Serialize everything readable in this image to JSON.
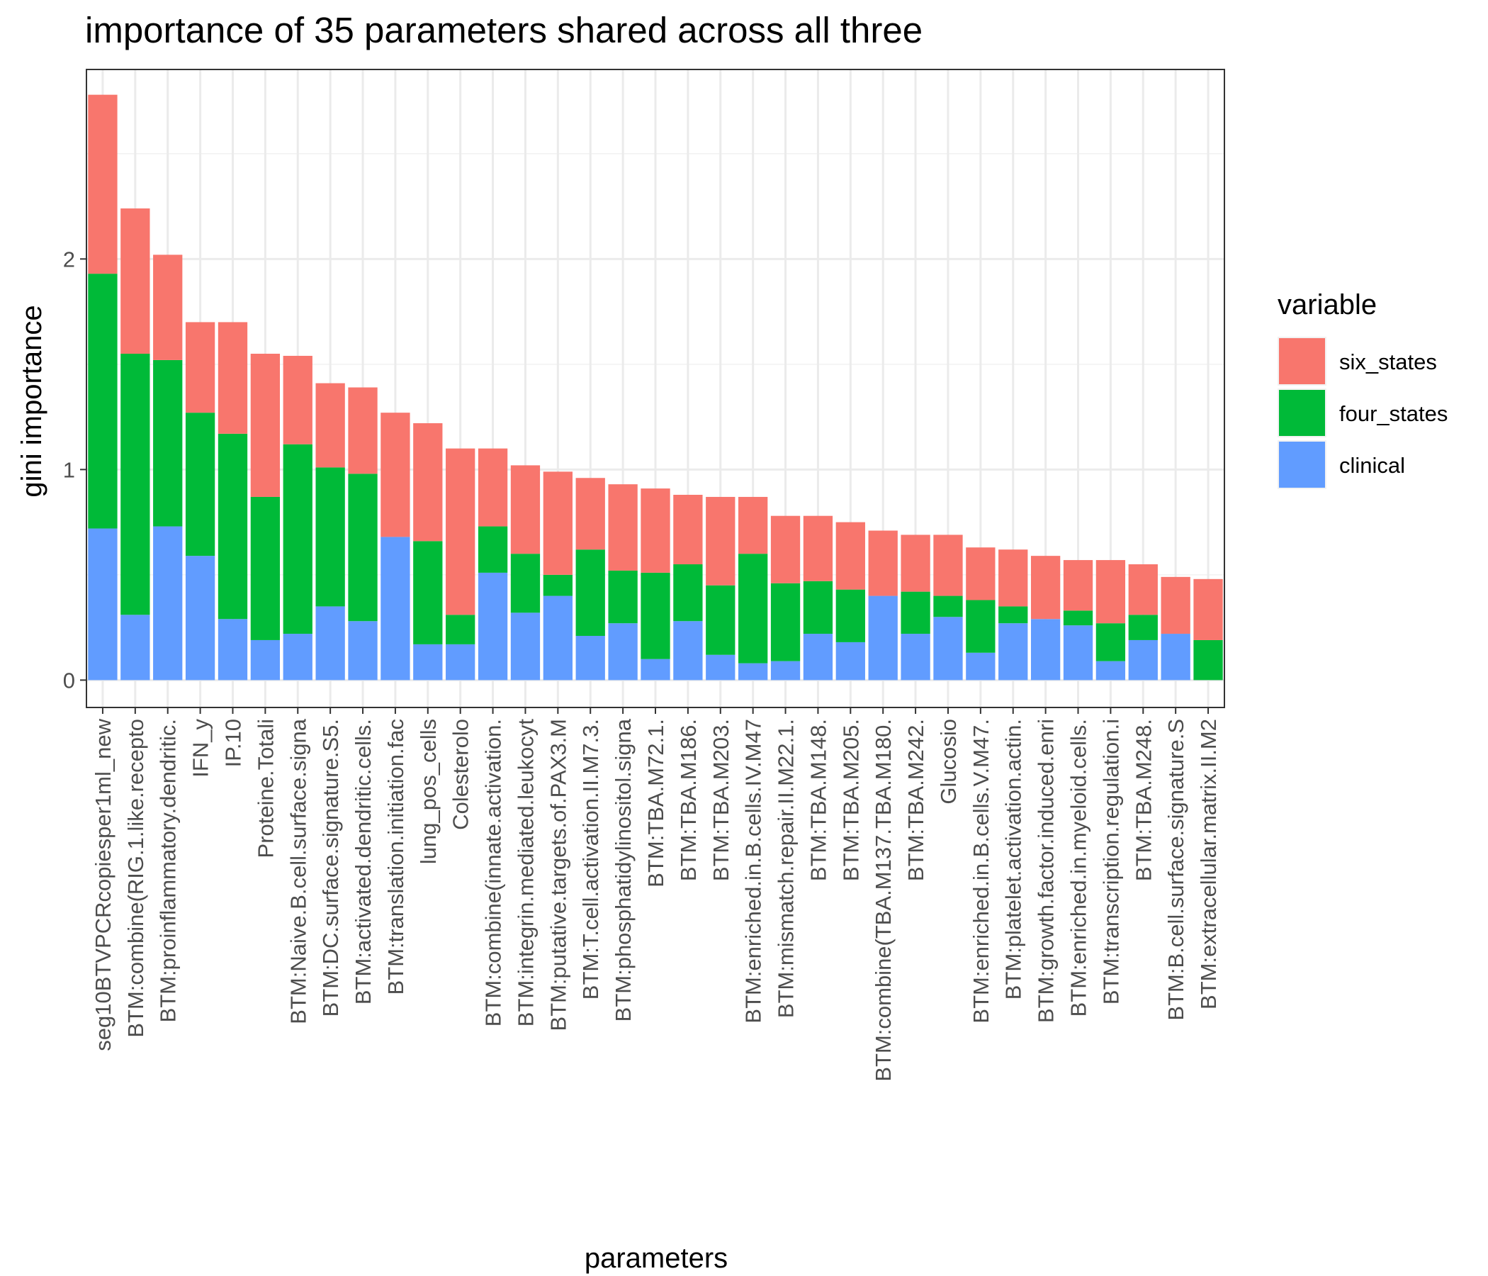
{
  "chart_data": {
    "type": "bar",
    "stacked": true,
    "title": "importance of 35 parameters shared across all three",
    "xlabel": "parameters",
    "ylabel": "gini importance",
    "ylim": [
      -0.13,
      2.9
    ],
    "yticks": [
      0,
      1,
      2
    ],
    "grid": true,
    "legend": {
      "title": "variable",
      "position": "right",
      "entries": [
        "six_states",
        "four_states",
        "clinical"
      ]
    },
    "colors": {
      "six_states": "#F8766D",
      "four_states": "#00BA38",
      "clinical": "#619CFF"
    },
    "categories": [
      "seg10BTVPCRcopiesper1ml_new",
      "BTM:combine(RIG.1.like.recepto",
      "BTM:proinflammatory.dendritic.",
      "IFN_y",
      "IP.10",
      "Proteine.Totali",
      "BTM:Naive.B.cell.surface.signa",
      "BTM:DC.surface.signature.S5.",
      "BTM:activated.dendritic.cells.",
      "BTM:translation.initiation.fac",
      "lung_pos_cells",
      "Colesterolo",
      "BTM:combine(innate.activation.",
      "BTM:integrin.mediated.leukocyt",
      "BTM:putative.targets.of.PAX3.M",
      "BTM:T.cell.activation.II.M7.3.",
      "BTM:phosphatidylinositol.signa",
      "BTM:TBA.M72.1.",
      "BTM:TBA.M186.",
      "BTM:TBA.M203.",
      "BTM:enriched.in.B.cells.IV.M47",
      "BTM:mismatch.repair.II.M22.1.",
      "BTM:TBA.M148.",
      "BTM:TBA.M205.",
      "BTM:combine(TBA.M137.TBA.M180.",
      "BTM:TBA.M242.",
      "Glucosio",
      "BTM:enriched.in.B.cells.V.M47.",
      "BTM:platelet.activation.actin.",
      "BTM:growth.factor.induced.enri",
      "BTM:enriched.in.myeloid.cells.",
      "BTM:transcription.regulation.i",
      "BTM:TBA.M248.",
      "BTM:B.cell.surface.signature.S",
      "BTM:extracellular.matrix.II.M2"
    ],
    "series": [
      {
        "name": "clinical",
        "values": [
          0.72,
          0.31,
          0.73,
          0.59,
          0.29,
          0.19,
          0.22,
          0.35,
          0.28,
          0.68,
          0.17,
          0.17,
          0.51,
          0.32,
          0.4,
          0.21,
          0.27,
          0.1,
          0.28,
          0.12,
          0.08,
          0.09,
          0.22,
          0.18,
          0.4,
          0.22,
          0.3,
          0.13,
          0.27,
          0.29,
          0.26,
          0.09,
          0.19,
          0.22,
          0.0
        ]
      },
      {
        "name": "four_states",
        "values": [
          1.21,
          1.24,
          0.79,
          0.68,
          0.88,
          0.68,
          0.9,
          0.66,
          0.7,
          0.0,
          0.49,
          0.14,
          0.22,
          0.28,
          0.1,
          0.41,
          0.25,
          0.41,
          0.27,
          0.33,
          0.52,
          0.37,
          0.25,
          0.25,
          0.0,
          0.2,
          0.1,
          0.25,
          0.08,
          0.0,
          0.07,
          0.18,
          0.12,
          0.0,
          0.19
        ]
      },
      {
        "name": "six_states",
        "values": [
          0.85,
          0.69,
          0.5,
          0.43,
          0.53,
          0.68,
          0.42,
          0.4,
          0.41,
          0.59,
          0.56,
          0.79,
          0.37,
          0.42,
          0.49,
          0.34,
          0.41,
          0.4,
          0.33,
          0.42,
          0.27,
          0.32,
          0.31,
          0.32,
          0.31,
          0.27,
          0.29,
          0.25,
          0.27,
          0.3,
          0.24,
          0.3,
          0.24,
          0.27,
          0.29
        ]
      }
    ]
  }
}
